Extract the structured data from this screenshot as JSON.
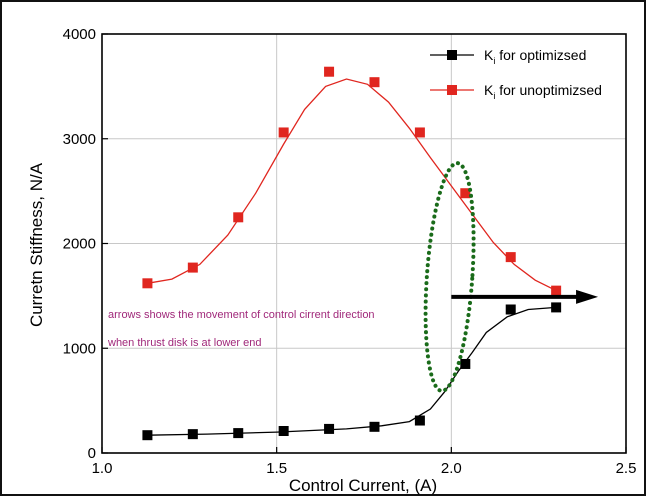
{
  "chart_data": {
    "type": "scatter",
    "xlabel": "Control Current, (A)",
    "ylabel": "Curretn Stiffness, N/A",
    "xlim": [
      1.0,
      2.5
    ],
    "ylim": [
      0,
      4000
    ],
    "x_ticks": [
      "1.0",
      "1.5",
      "2.0",
      "2.5"
    ],
    "y_ticks": [
      "0",
      "1000",
      "2000",
      "3000",
      "4000"
    ],
    "grid": true,
    "legend_position": "top-right",
    "series": [
      {
        "name": "K",
        "name_subscript": "i",
        "name_suffix": " for optimizsed",
        "color": "#000000",
        "marker": "square",
        "x": [
          1.13,
          1.26,
          1.39,
          1.52,
          1.65,
          1.78,
          1.91,
          2.04,
          2.17,
          2.3
        ],
        "y": [
          170,
          180,
          190,
          210,
          230,
          250,
          310,
          850,
          1370,
          1390
        ],
        "curve": [
          [
            1.13,
            170
          ],
          [
            1.3,
            180
          ],
          [
            1.5,
            200
          ],
          [
            1.7,
            230
          ],
          [
            1.8,
            260
          ],
          [
            1.88,
            300
          ],
          [
            1.94,
            420
          ],
          [
            1.98,
            580
          ],
          [
            2.02,
            780
          ],
          [
            2.06,
            960
          ],
          [
            2.1,
            1150
          ],
          [
            2.16,
            1300
          ],
          [
            2.22,
            1370
          ],
          [
            2.3,
            1390
          ]
        ]
      },
      {
        "name": "K",
        "name_subscript": "i",
        "name_suffix": " for unoptimizsed",
        "color": "#e0261f",
        "marker": "square",
        "x": [
          1.13,
          1.26,
          1.39,
          1.52,
          1.65,
          1.78,
          1.91,
          2.04,
          2.17,
          2.3
        ],
        "y": [
          1620,
          1770,
          2250,
          3060,
          3640,
          3540,
          3060,
          2480,
          1870,
          1550
        ],
        "curve": [
          [
            1.13,
            1620
          ],
          [
            1.2,
            1660
          ],
          [
            1.28,
            1800
          ],
          [
            1.36,
            2080
          ],
          [
            1.44,
            2480
          ],
          [
            1.52,
            2950
          ],
          [
            1.58,
            3280
          ],
          [
            1.64,
            3500
          ],
          [
            1.7,
            3570
          ],
          [
            1.76,
            3520
          ],
          [
            1.82,
            3350
          ],
          [
            1.88,
            3100
          ],
          [
            1.94,
            2820
          ],
          [
            2.0,
            2550
          ],
          [
            2.06,
            2280
          ],
          [
            2.12,
            2010
          ],
          [
            2.18,
            1800
          ],
          [
            2.24,
            1650
          ],
          [
            2.3,
            1550
          ]
        ]
      }
    ],
    "annotations": {
      "line1": "arrows shows the movement of control cirrent direction",
      "line2": "when thrust disk is at lower end",
      "text_color": "#a0287a",
      "ellipse_color": "#1a6b1a",
      "arrow_color": "#000000",
      "arrow_from": [
        2.0,
        1490
      ],
      "arrow_to": [
        2.42,
        1490
      ],
      "ellipse_center": [
        1.995,
        1680
      ],
      "ellipse_radius_data": [
        0.065,
        1090
      ]
    }
  }
}
